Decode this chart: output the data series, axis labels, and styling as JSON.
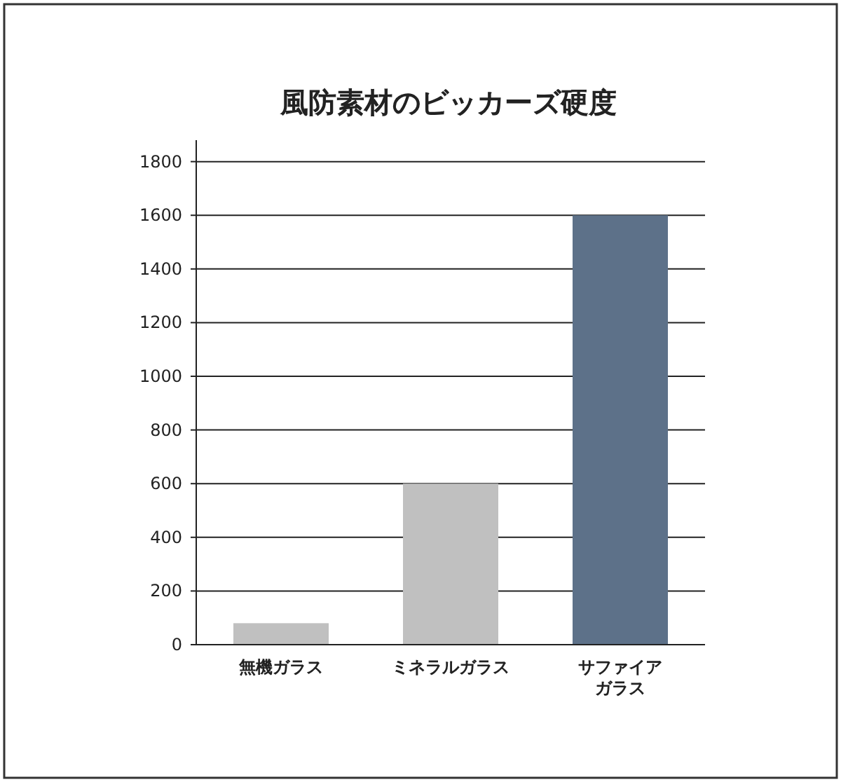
{
  "chart_data": {
    "type": "bar",
    "title": "風防素材のビッカーズ硬度",
    "categories": [
      "無機ガラス",
      "ミネラルガラス",
      "サファイアガラス"
    ],
    "values": [
      80,
      600,
      1600
    ],
    "colors": [
      "#c0c0c0",
      "#c0c0c0",
      "#5d7189"
    ],
    "ylim": [
      0,
      1880
    ],
    "yticks": [
      0,
      200,
      400,
      600,
      800,
      1000,
      1200,
      1400,
      1600,
      1800
    ],
    "grid": "y"
  }
}
